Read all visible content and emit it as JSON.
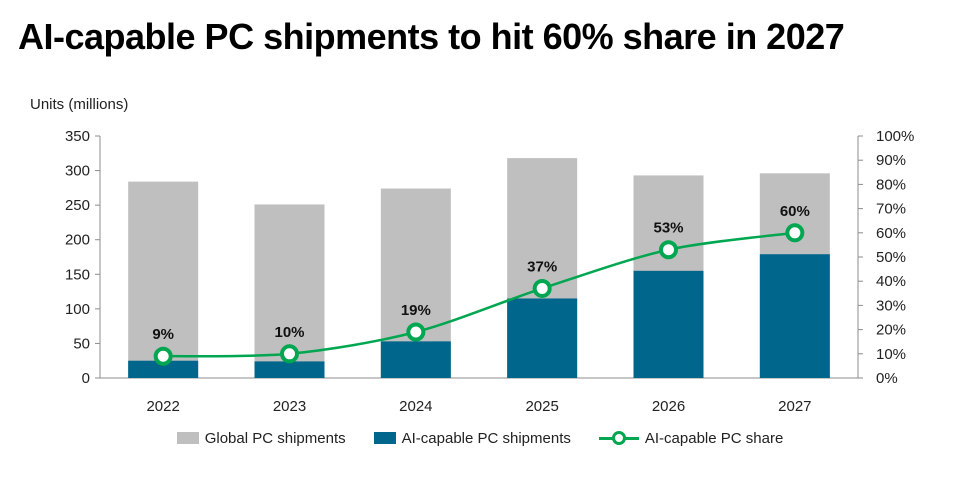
{
  "title": "AI-capable PC shipments to hit 60% share in 2027",
  "chart_data": {
    "type": "bar",
    "title": "AI-capable PC shipments to hit 60% share in 2027",
    "ylabel": "Units (millions)",
    "xlabel": "",
    "categories": [
      "2022",
      "2023",
      "2024",
      "2025",
      "2026",
      "2027"
    ],
    "ylim": [
      0,
      350
    ],
    "yticks": [
      0,
      50,
      100,
      150,
      200,
      250,
      300,
      350
    ],
    "y2lim": [
      0,
      100
    ],
    "y2ticks": [
      "0%",
      "10%",
      "20%",
      "30%",
      "40%",
      "50%",
      "60%",
      "70%",
      "80%",
      "90%",
      "100%"
    ],
    "series": [
      {
        "name": "Global PC shipments",
        "type": "bar",
        "values": [
          284,
          251,
          274,
          318,
          293,
          296
        ]
      },
      {
        "name": "AI-capable PC shipments",
        "type": "bar",
        "values": [
          25,
          24,
          53,
          115,
          155,
          179
        ]
      },
      {
        "name": "AI-capable PC share",
        "type": "line",
        "axis": "secondary",
        "values": [
          9,
          10,
          19,
          37,
          53,
          60
        ]
      }
    ],
    "data_labels": [
      "9%",
      "10%",
      "19%",
      "37%",
      "53%",
      "60%"
    ],
    "colors": {
      "global": "#bfbfbf",
      "ai": "#00668c",
      "share": "#00a650"
    },
    "legend_position": "bottom"
  }
}
